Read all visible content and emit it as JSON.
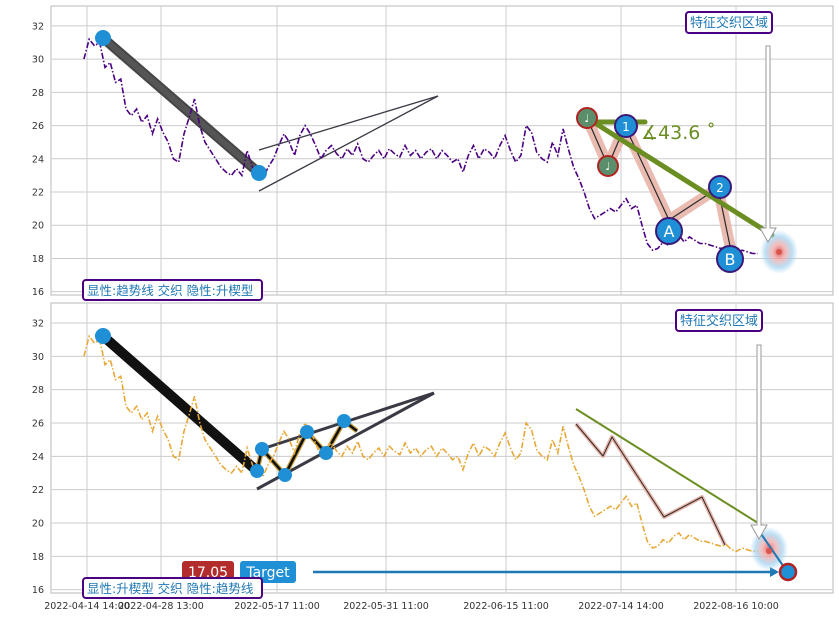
{
  "colors": {
    "background": "#ffffff",
    "grid": "#cccccc",
    "panel_border": "#b8b8b8",
    "series_top": "#4b0082",
    "series_bottom": "#e8a838",
    "marker_blue": "#1f8fd6",
    "marker_green": "#6b8e23",
    "marker_green_fill": "#5b8f6b",
    "marker_red_border": "#b22222",
    "channel_dark": "#222222",
    "channel_pink": "#e8b4a8",
    "label_border": "#4b0082",
    "label_text": "#1f77b4",
    "target_red": "#b22c2c",
    "target_blue": "#1f8fd6"
  },
  "chart_data": [
    {
      "type": "line",
      "panel": "top",
      "ylim": [
        15.8,
        33.2
      ],
      "y_ticks": [
        16,
        18,
        20,
        22,
        24,
        26,
        28,
        30,
        32
      ],
      "grid": true,
      "series": [
        {
          "style": "dash-dot",
          "x": [
            "2022-04-14",
            "2022-04-15",
            "2022-04-16",
            "2022-04-17",
            "2022-04-18",
            "2022-04-19",
            "2022-04-20",
            "2022-04-21",
            "2022-04-22",
            "2022-04-23",
            "2022-04-24",
            "2022-04-25",
            "2022-04-26",
            "2022-04-27",
            "2022-04-28",
            "2022-04-29",
            "2022-04-30",
            "2022-05-01",
            "2022-05-02",
            "2022-05-03",
            "2022-05-04",
            "2022-05-05",
            "2022-05-06",
            "2022-05-07",
            "2022-05-08",
            "2022-05-09",
            "2022-05-10",
            "2022-05-11",
            "2022-05-12",
            "2022-05-13",
            "2022-05-14",
            "2022-05-15",
            "2022-05-16",
            "2022-05-17",
            "2022-05-18",
            "2022-05-19",
            "2022-05-20",
            "2022-05-21",
            "2022-05-22",
            "2022-05-23",
            "2022-05-24",
            "2022-05-25",
            "2022-05-26",
            "2022-05-27",
            "2022-05-28",
            "2022-05-29",
            "2022-05-30",
            "2022-05-31",
            "2022-06-01",
            "2022-06-02",
            "2022-06-03",
            "2022-06-04",
            "2022-06-05",
            "2022-06-06",
            "2022-06-07",
            "2022-06-08",
            "2022-06-09",
            "2022-06-10",
            "2022-06-11",
            "2022-06-12",
            "2022-06-13",
            "2022-06-14",
            "2022-06-15",
            "2022-06-16",
            "2022-06-17",
            "2022-06-18",
            "2022-06-19",
            "2022-06-20",
            "2022-06-21",
            "2022-06-22",
            "2022-06-23",
            "2022-06-24",
            "2022-06-25",
            "2022-06-26",
            "2022-06-27",
            "2022-06-28",
            "2022-06-29",
            "2022-06-30",
            "2022-07-01",
            "2022-07-02",
            "2022-07-03",
            "2022-07-04",
            "2022-07-05",
            "2022-07-06",
            "2022-07-07",
            "2022-07-08",
            "2022-07-09",
            "2022-07-10",
            "2022-07-11",
            "2022-07-12",
            "2022-07-13",
            "2022-07-14",
            "2022-07-15",
            "2022-07-16",
            "2022-07-17",
            "2022-07-18",
            "2022-07-19",
            "2022-07-20",
            "2022-07-21",
            "2022-07-22",
            "2022-07-23",
            "2022-07-24",
            "2022-07-25",
            "2022-07-26",
            "2022-07-27",
            "2022-07-28",
            "2022-07-29",
            "2022-07-30",
            "2022-07-31",
            "2022-08-01",
            "2022-08-02",
            "2022-08-03",
            "2022-08-04",
            "2022-08-05",
            "2022-08-06",
            "2022-08-07",
            "2022-08-08",
            "2022-08-09",
            "2022-08-10",
            "2022-08-11",
            "2022-08-12",
            "2022-08-13",
            "2022-08-14",
            "2022-08-15",
            "2022-08-16",
            "2022-08-17",
            "2022-08-18",
            "2022-08-19",
            "2022-08-20"
          ],
          "y": [
            30.0,
            31.2,
            30.8,
            31.0,
            29.5,
            29.8,
            28.6,
            28.8,
            27.0,
            26.6,
            27.0,
            26.2,
            26.6,
            25.5,
            26.4,
            25.6,
            25.0,
            24.0,
            23.8,
            25.5,
            26.5,
            27.6,
            26.0,
            25.0,
            24.5,
            24.0,
            23.5,
            23.2,
            23.0,
            23.4,
            23.0,
            24.5,
            23.5,
            23.0,
            22.8,
            23.5,
            24.0,
            24.8,
            25.5,
            25.0,
            24.2,
            25.4,
            26.0,
            25.5,
            24.8,
            24.0,
            24.5,
            24.8,
            24.3,
            24.0,
            24.6,
            24.2,
            24.9,
            24.0,
            23.8,
            24.2,
            24.5,
            24.0,
            24.6,
            24.3,
            24.1,
            24.8,
            24.2,
            24.5,
            24.0,
            24.4,
            24.6,
            24.0,
            24.5,
            24.2,
            23.8,
            24.0,
            23.2,
            24.2,
            24.8,
            24.0,
            24.6,
            24.4,
            24.0,
            24.8,
            25.4,
            24.5,
            23.8,
            24.2,
            26.0,
            25.6,
            24.4,
            24.0,
            23.8,
            25.0,
            24.2,
            25.8,
            24.6,
            23.5,
            22.8,
            22.0,
            21.0,
            20.4,
            20.6,
            20.8,
            21.0,
            20.8,
            21.2,
            21.6,
            21.0,
            21.2,
            20.0,
            18.9,
            18.5,
            18.6,
            19.0,
            18.8,
            19.2,
            19.4,
            19.0,
            19.3,
            19.1,
            18.9,
            18.9,
            18.8,
            18.7,
            18.6,
            18.7,
            18.4,
            18.3,
            18.5,
            18.4,
            18.3,
            18.3
          ]
        }
      ],
      "annotations": {
        "region_label": "特征交织区域",
        "legend_label": "显性:趋势线 交织 隐性:升楔型",
        "angle_label": "∡43.6 ˚",
        "point_labels": [
          "1",
          "2",
          "A",
          "B"
        ],
        "small_point_label": "♩"
      }
    },
    {
      "type": "line",
      "panel": "bottom",
      "ylim": [
        15.8,
        33.2
      ],
      "y_ticks": [
        16,
        18,
        20,
        22,
        24,
        26,
        28,
        30,
        32
      ],
      "x_tick_labels": [
        "2022-04-14 14:00",
        "2022-04-28 13:00",
        "2022-05-17 11:00",
        "2022-05-31 11:00",
        "2022-06-15 11:00",
        "2022-07-14 14:00",
        "2022-08-16 10:00"
      ],
      "grid": true,
      "series": [
        {
          "style": "dash-dot",
          "same_as_top": true
        }
      ],
      "annotations": {
        "region_label": "特征交织区域",
        "legend_label": "显性:升楔型 交织 隐性:趋势线",
        "target_value": "17.05",
        "target_label": "Target"
      }
    }
  ]
}
